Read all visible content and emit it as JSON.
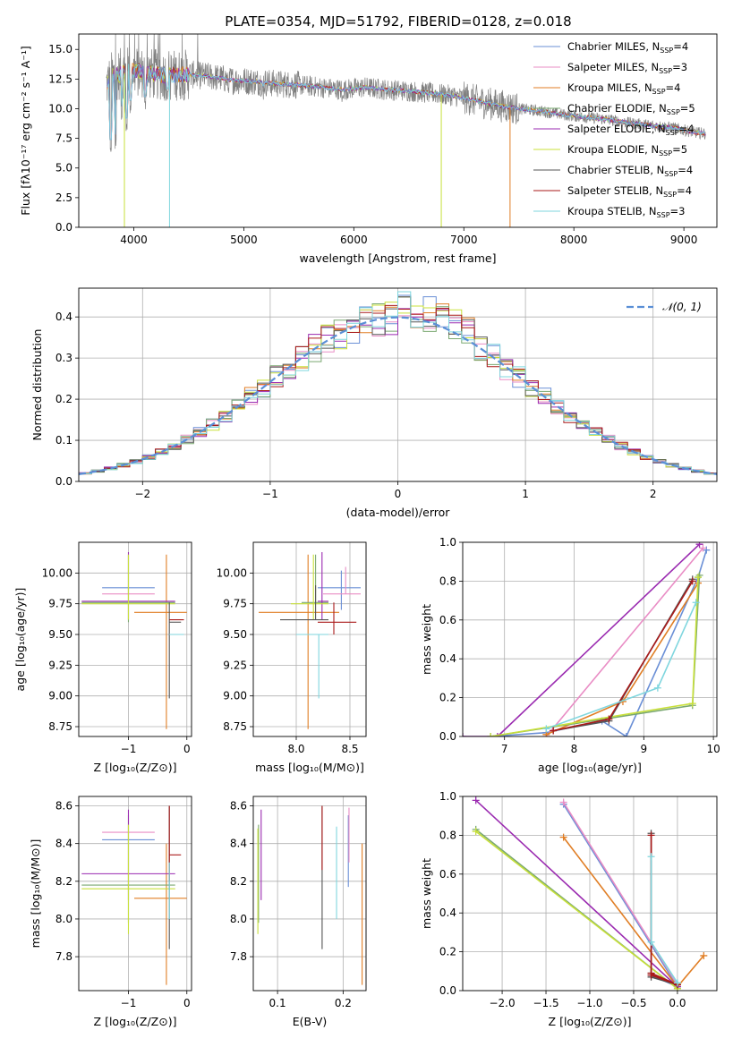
{
  "colors": {
    "c_miles": "#6a8fd6",
    "s_miles": "#e98dc5",
    "k_miles": "#e07e25",
    "c_elodie": "#7aa870",
    "s_elodie": "#9a2ab0",
    "k_elodie": "#c8e03a",
    "c_stelib": "#555555",
    "s_stelib": "#aa1a1a",
    "k_stelib": "#7fd6de",
    "gauss": "#5a8fd6",
    "spec": "#7f7f7f"
  },
  "figure_title": "PLATE=0354, MJD=51792, FIBERID=0128, z=0.018",
  "legend_spectrum": [
    {
      "key": "c_miles",
      "text": "Chabrier MILES, N",
      "n": "=4"
    },
    {
      "key": "s_miles",
      "text": "Salpeter MILES, N",
      "n": "=3"
    },
    {
      "key": "k_miles",
      "text": "Kroupa MILES, N",
      "n": "=4"
    },
    {
      "key": "c_elodie",
      "text": "Chabrier ELODIE, N",
      "n": "=5"
    },
    {
      "key": "s_elodie",
      "text": "Salpeter ELODIE, N",
      "n": "=4"
    },
    {
      "key": "k_elodie",
      "text": "Kroupa ELODIE, N",
      "n": "=5"
    },
    {
      "key": "c_stelib",
      "text": "Chabrier STELIB, N",
      "n": "=4"
    },
    {
      "key": "s_stelib",
      "text": "Salpeter STELIB, N",
      "n": "=4"
    },
    {
      "key": "k_stelib",
      "text": "Kroupa STELIB, N",
      "n": "=3"
    }
  ],
  "legend_sub": "SSP",
  "chart_data": [
    {
      "id": "spectrum",
      "type": "line",
      "title": "PLATE=0354, MJD=51792, FIBERID=0128, z=0.018",
      "xlabel": "wavelength [Angstrom, rest frame]",
      "ylabel": "Flux [fλ10⁻¹⁷ erg cm⁻² s⁻¹ A⁻¹]",
      "xlim": [
        3500,
        9300
      ],
      "ylim": [
        0,
        16.3
      ],
      "xticks": [
        4000,
        5000,
        6000,
        7000,
        8000,
        9000
      ],
      "yticks": [
        0.0,
        2.5,
        5.0,
        7.5,
        10.0,
        12.5,
        15.0
      ],
      "ytick_labels": [
        "0.0",
        "2.5",
        "5.0",
        "7.5",
        "10.0",
        "12.5",
        "15.0"
      ],
      "grid": false,
      "legend": "top-right",
      "continuum": {
        "x": [
          3750,
          3800,
          3900,
          4000,
          4100,
          4300,
          4500,
          4700,
          4900,
          5100,
          5300,
          5500,
          5700,
          5900,
          6100,
          6300,
          6500,
          6700,
          6900,
          7100,
          7300,
          7500,
          7700,
          7900,
          8100,
          8300,
          8500,
          8700,
          8900,
          9100,
          9200
        ],
        "y": [
          12.0,
          12.7,
          13.0,
          13.2,
          13.0,
          12.8,
          12.9,
          12.7,
          12.4,
          12.3,
          12.1,
          12.0,
          11.8,
          11.6,
          11.8,
          11.6,
          11.5,
          11.3,
          11.1,
          10.7,
          10.3,
          10.0,
          9.8,
          9.5,
          9.3,
          9.1,
          8.8,
          8.6,
          8.4,
          8.0,
          7.9
        ]
      },
      "absorption": [
        {
          "x": 3790,
          "y": 6.2
        },
        {
          "x": 3835,
          "y": 6.6
        },
        {
          "x": 3890,
          "y": 9.0
        },
        {
          "x": 3935,
          "y": 8.0
        },
        {
          "x": 3970,
          "y": 9.5
        },
        {
          "x": 4102,
          "y": 9.8
        },
        {
          "x": 4305,
          "y": 10.5
        },
        {
          "x": 4861,
          "y": 11.3
        },
        {
          "x": 5175,
          "y": 10.7
        },
        {
          "x": 5893,
          "y": 10.4
        },
        {
          "x": 6563,
          "y": 11.0
        }
      ],
      "model_drops": [
        {
          "x": 3915,
          "y": 0,
          "key": "k_elodie"
        },
        {
          "x": 4325,
          "y": 0,
          "key": "k_stelib"
        },
        {
          "x": 6795,
          "y": 0,
          "key": "k_elodie"
        },
        {
          "x": 7420,
          "y": 0,
          "key": "k_miles"
        }
      ]
    },
    {
      "id": "residuals",
      "type": "step",
      "xlabel": "(data-model)/error",
      "ylabel": "Normed distribution",
      "xlim": [
        -2.5,
        2.5
      ],
      "ylim": [
        0,
        0.47
      ],
      "xticks": [
        -2,
        -1,
        0,
        1,
        2
      ],
      "xtick_labels": [
        "−2",
        "−1",
        "0",
        "1",
        "2"
      ],
      "yticks": [
        0.0,
        0.1,
        0.2,
        0.3,
        0.4
      ],
      "ytick_labels": [
        "0.0",
        "0.1",
        "0.2",
        "0.3",
        "0.4"
      ],
      "grid": true,
      "legend": "top-right",
      "gauss_label": "𝒩(0, 1)",
      "bin_width": 0.1
    },
    {
      "id": "age_vs_Z",
      "type": "errorbar",
      "xlabel": "Z [log₁₀(Z/Z⊙)]",
      "ylabel": "age  [log₁₀(age/yr)]",
      "xlim": [
        -1.85,
        0.08
      ],
      "ylim": [
        8.67,
        10.25
      ],
      "xticks": [
        -1,
        0
      ],
      "xtick_labels": [
        "−1",
        "0"
      ],
      "yticks": [
        8.75,
        9.0,
        9.25,
        9.5,
        9.75,
        10.0
      ],
      "ytick_labels": [
        "8.75",
        "9.00",
        "9.25",
        "9.50",
        "9.75",
        "10.00"
      ],
      "grid": true,
      "points": [
        {
          "key": "c_miles",
          "x": -1.0,
          "xlo": -1.45,
          "xhi": -0.55,
          "y": 9.88,
          "ylo": 9.88,
          "yhi": 9.88
        },
        {
          "key": "s_miles",
          "x": -1.0,
          "xlo": -1.45,
          "xhi": -0.55,
          "y": 9.83,
          "ylo": 9.83,
          "yhi": 9.83
        },
        {
          "key": "k_miles",
          "x": -0.35,
          "xlo": -0.9,
          "xhi": 0.0,
          "y": 9.68,
          "ylo": 8.73,
          "yhi": 10.15
        },
        {
          "key": "c_elodie",
          "x": -1.0,
          "xlo": -1.8,
          "xhi": -0.2,
          "y": 9.76,
          "ylo": 9.6,
          "yhi": 10.15
        },
        {
          "key": "s_elodie",
          "x": -1.0,
          "xlo": -1.8,
          "xhi": -0.2,
          "y": 9.77,
          "ylo": 9.62,
          "yhi": 10.17
        },
        {
          "key": "k_elodie",
          "x": -1.0,
          "xlo": -1.8,
          "xhi": -0.2,
          "y": 9.75,
          "ylo": 9.62,
          "yhi": 10.15
        },
        {
          "key": "c_stelib",
          "x": -0.3,
          "xlo": -0.3,
          "xhi": -0.1,
          "y": 9.6,
          "ylo": 8.98,
          "yhi": 9.76
        },
        {
          "key": "s_stelib",
          "x": -0.3,
          "xlo": -0.3,
          "xhi": -0.05,
          "y": 9.62,
          "ylo": 9.62,
          "yhi": 9.62
        },
        {
          "key": "k_stelib",
          "x": -0.3,
          "xlo": -0.3,
          "xhi": -0.05,
          "y": 9.5,
          "ylo": 9.5,
          "yhi": 9.5
        }
      ]
    },
    {
      "id": "age_vs_mass",
      "type": "errorbar",
      "xlabel": "mass [log₁₀(M/M⊙)]",
      "ylabel": "",
      "xlim": [
        7.6,
        8.65
      ],
      "ylim": [
        8.67,
        10.25
      ],
      "xticks": [
        8.0,
        8.5
      ],
      "xtick_labels": [
        "8.0",
        "8.5"
      ],
      "yticks": [
        8.75,
        9.0,
        9.25,
        9.5,
        9.75,
        10.0
      ],
      "ytick_labels": [
        "8.75",
        "9.00",
        "9.25",
        "9.50",
        "9.75",
        "10.00"
      ],
      "grid": true,
      "points": [
        {
          "key": "c_miles",
          "x": 8.42,
          "xlo": 8.2,
          "xhi": 8.6,
          "y": 9.88,
          "ylo": 9.7,
          "yhi": 10.02
        },
        {
          "key": "s_miles",
          "x": 8.46,
          "xlo": 8.25,
          "xhi": 8.6,
          "y": 9.83,
          "ylo": 9.83,
          "yhi": 10.05
        },
        {
          "key": "k_miles",
          "x": 8.11,
          "xlo": 7.65,
          "xhi": 8.4,
          "y": 9.68,
          "ylo": 8.73,
          "yhi": 10.15
        },
        {
          "key": "c_elodie",
          "x": 8.18,
          "xlo": 8.05,
          "xhi": 8.3,
          "y": 9.76,
          "ylo": 9.76,
          "yhi": 10.15
        },
        {
          "key": "s_elodie",
          "x": 8.24,
          "xlo": 8.2,
          "xhi": 8.3,
          "y": 9.77,
          "ylo": 9.62,
          "yhi": 10.17
        },
        {
          "key": "k_elodie",
          "x": 8.16,
          "xlo": 7.95,
          "xhi": 8.3,
          "y": 9.75,
          "ylo": 9.62,
          "yhi": 10.15
        },
        {
          "key": "c_stelib",
          "x": 8.18,
          "xlo": 7.85,
          "xhi": 8.3,
          "y": 9.62,
          "ylo": 9.62,
          "yhi": 9.9
        },
        {
          "key": "s_stelib",
          "x": 8.35,
          "xlo": 8.2,
          "xhi": 8.56,
          "y": 9.6,
          "ylo": 9.5,
          "yhi": 9.76
        },
        {
          "key": "k_stelib",
          "x": 8.21,
          "xlo": 8.0,
          "xhi": 8.3,
          "y": 9.5,
          "ylo": 8.98,
          "yhi": 9.5
        }
      ]
    },
    {
      "id": "weight_vs_age",
      "type": "line",
      "xlabel": "age  [log₁₀(age/yr)]",
      "ylabel": "mass weight",
      "xlim": [
        6.4,
        10.05
      ],
      "ylim": [
        0,
        1.0
      ],
      "xticks": [
        7,
        8,
        9,
        10
      ],
      "xtick_labels": [
        "7",
        "8",
        "9",
        "10"
      ],
      "yticks": [
        0.0,
        0.2,
        0.4,
        0.6,
        0.8,
        1.0
      ],
      "ytick_labels": [
        "0.0",
        "0.2",
        "0.4",
        "0.6",
        "0.8",
        "1.0"
      ],
      "grid": true,
      "series": [
        {
          "key": "c_miles",
          "x": [
            6.8,
            7.6,
            8.4,
            8.75,
            9.78,
            9.9
          ],
          "y": [
            0.0,
            0.02,
            0.08,
            0.0,
            0.82,
            0.96
          ]
        },
        {
          "key": "s_miles",
          "x": [
            7.6,
            9.85
          ],
          "y": [
            0.0,
            0.97
          ]
        },
        {
          "key": "k_miles",
          "x": [
            7.6,
            8.7,
            9.78
          ],
          "y": [
            0.01,
            0.18,
            0.79
          ]
        },
        {
          "key": "c_elodie",
          "x": [
            6.8,
            9.7,
            9.8
          ],
          "y": [
            0.0,
            0.16,
            0.83
          ]
        },
        {
          "key": "s_elodie",
          "x": [
            6.4,
            6.9,
            9.8
          ],
          "y": [
            0.0,
            0.0,
            0.99
          ]
        },
        {
          "key": "k_elodie",
          "x": [
            6.8,
            9.7,
            9.78
          ],
          "y": [
            0.0,
            0.17,
            0.82
          ]
        },
        {
          "key": "c_stelib",
          "x": [
            7.7,
            8.5,
            9.7
          ],
          "y": [
            0.03,
            0.08,
            0.81
          ]
        },
        {
          "key": "s_stelib",
          "x": [
            7.7,
            8.5,
            9.7
          ],
          "y": [
            0.03,
            0.09,
            0.8
          ]
        },
        {
          "key": "k_stelib",
          "x": [
            7.6,
            9.2,
            9.75
          ],
          "y": [
            0.04,
            0.25,
            0.69
          ]
        }
      ]
    },
    {
      "id": "mass_vs_Z",
      "type": "errorbar",
      "xlabel": "Z [log₁₀(Z/Z⊙)]",
      "ylabel": "mass [log₁₀(M/M⊙)]",
      "xlim": [
        -1.85,
        0.08
      ],
      "ylim": [
        7.62,
        8.65
      ],
      "xticks": [
        -1,
        0
      ],
      "xtick_labels": [
        "−1",
        "0"
      ],
      "yticks": [
        7.8,
        8.0,
        8.2,
        8.4,
        8.6
      ],
      "ytick_labels": [
        "7.8",
        "8.0",
        "8.2",
        "8.4",
        "8.6"
      ],
      "grid": true,
      "points": [
        {
          "key": "c_miles",
          "x": -1.0,
          "xlo": -1.45,
          "xhi": -0.55,
          "y": 8.42,
          "ylo": 8.42,
          "yhi": 8.42
        },
        {
          "key": "s_miles",
          "x": -1.0,
          "xlo": -1.45,
          "xhi": -0.55,
          "y": 8.46,
          "ylo": 8.46,
          "yhi": 8.46
        },
        {
          "key": "k_miles",
          "x": -0.35,
          "xlo": -0.9,
          "xhi": 0.0,
          "y": 8.11,
          "ylo": 7.65,
          "yhi": 8.4
        },
        {
          "key": "c_elodie",
          "x": -1.0,
          "xlo": -1.8,
          "xhi": -0.2,
          "y": 8.18,
          "ylo": 7.98,
          "yhi": 8.55
        },
        {
          "key": "s_elodie",
          "x": -1.0,
          "xlo": -1.8,
          "xhi": -0.2,
          "y": 8.24,
          "ylo": 8.1,
          "yhi": 8.58
        },
        {
          "key": "k_elodie",
          "x": -1.0,
          "xlo": -1.8,
          "xhi": -0.2,
          "y": 8.16,
          "ylo": 7.92,
          "yhi": 8.5
        },
        {
          "key": "c_stelib",
          "x": -0.3,
          "xlo": -0.3,
          "xhi": -0.3,
          "y": 8.18,
          "ylo": 7.84,
          "yhi": 8.6
        },
        {
          "key": "s_stelib",
          "x": -0.3,
          "xlo": -0.3,
          "xhi": -0.1,
          "y": 8.34,
          "ylo": 8.2,
          "yhi": 8.6
        },
        {
          "key": "k_stelib",
          "x": -0.3,
          "xlo": -0.3,
          "xhi": -0.3,
          "y": 8.21,
          "ylo": 8.0,
          "yhi": 8.3
        }
      ]
    },
    {
      "id": "mass_vs_EBV",
      "type": "errorbar",
      "xlabel": "E(B-V)",
      "ylabel": "",
      "xlim": [
        0.063,
        0.235
      ],
      "ylim": [
        7.62,
        8.65
      ],
      "xticks": [
        0.1,
        0.2
      ],
      "xtick_labels": [
        "0.1",
        "0.2"
      ],
      "yticks": [
        7.8,
        8.0,
        8.2,
        8.4,
        8.6
      ],
      "ytick_labels": [
        "7.8",
        "8.0",
        "8.2",
        "8.4",
        "8.6"
      ],
      "grid": true,
      "points": [
        {
          "key": "c_miles",
          "x": 0.208,
          "xlo": 0.208,
          "xhi": 0.208,
          "y": 8.42,
          "ylo": 8.17,
          "yhi": 8.55
        },
        {
          "key": "s_miles",
          "x": 0.209,
          "xlo": 0.209,
          "xhi": 0.209,
          "y": 8.46,
          "ylo": 8.3,
          "yhi": 8.59
        },
        {
          "key": "k_miles",
          "x": 0.229,
          "xlo": 0.229,
          "xhi": 0.229,
          "y": 8.11,
          "ylo": 7.65,
          "yhi": 8.4
        },
        {
          "key": "c_elodie",
          "x": 0.071,
          "xlo": 0.071,
          "xhi": 0.071,
          "y": 8.18,
          "ylo": 7.98,
          "yhi": 8.5
        },
        {
          "key": "s_elodie",
          "x": 0.075,
          "xlo": 0.075,
          "xhi": 0.075,
          "y": 8.24,
          "ylo": 8.1,
          "yhi": 8.58
        },
        {
          "key": "k_elodie",
          "x": 0.07,
          "xlo": 0.07,
          "xhi": 0.07,
          "y": 8.16,
          "ylo": 7.92,
          "yhi": 8.48
        },
        {
          "key": "c_stelib",
          "x": 0.168,
          "xlo": 0.168,
          "xhi": 0.168,
          "y": 8.18,
          "ylo": 7.84,
          "yhi": 8.6
        },
        {
          "key": "s_stelib",
          "x": 0.168,
          "xlo": 0.168,
          "xhi": 0.168,
          "y": 8.34,
          "ylo": 8.26,
          "yhi": 8.6
        },
        {
          "key": "k_stelib",
          "x": 0.19,
          "xlo": 0.19,
          "xhi": 0.19,
          "y": 8.21,
          "ylo": 8.0,
          "yhi": 8.49
        }
      ]
    },
    {
      "id": "weight_vs_Z",
      "type": "line",
      "xlabel": "Z [log₁₀(Z/Z⊙)]",
      "ylabel": "mass weight",
      "xlim": [
        -2.45,
        0.45
      ],
      "ylim": [
        0,
        1.0
      ],
      "xticks": [
        -2.0,
        -1.5,
        -1.0,
        -0.5,
        0.0
      ],
      "xtick_labels": [
        "−2.0",
        "−1.5",
        "−1.0",
        "−0.5",
        "0.0"
      ],
      "yticks": [
        0.0,
        0.2,
        0.4,
        0.6,
        0.8,
        1.0
      ],
      "ytick_labels": [
        "0.0",
        "0.2",
        "0.4",
        "0.6",
        "0.8",
        "1.0"
      ],
      "grid": true,
      "series": [
        {
          "key": "c_miles",
          "x": [
            -1.3,
            0.0,
            -0.3
          ],
          "y": [
            0.96,
            0.02,
            0.08
          ]
        },
        {
          "key": "s_miles",
          "x": [
            -1.3,
            0.0
          ],
          "y": [
            0.97,
            0.03
          ]
        },
        {
          "key": "k_miles",
          "x": [
            -1.3,
            0.0,
            0.3
          ],
          "y": [
            0.79,
            0.02,
            0.18
          ]
        },
        {
          "key": "c_elodie",
          "x": [
            -2.3,
            0.0
          ],
          "y": [
            0.83,
            0.01
          ]
        },
        {
          "key": "s_elodie",
          "x": [
            -2.3,
            0.0
          ],
          "y": [
            0.98,
            0.02
          ]
        },
        {
          "key": "k_elodie",
          "x": [
            -2.3,
            0.0
          ],
          "y": [
            0.82,
            0.01
          ]
        },
        {
          "key": "c_stelib",
          "x": [
            -0.3,
            -0.3,
            0.0,
            -0.3
          ],
          "y": [
            0.81,
            0.09,
            0.03,
            0.07
          ]
        },
        {
          "key": "s_stelib",
          "x": [
            -0.3,
            -0.3,
            0.0,
            -0.3
          ],
          "y": [
            0.8,
            0.08,
            0.03,
            0.09
          ]
        },
        {
          "key": "k_stelib",
          "x": [
            -0.3,
            -0.3,
            0.0
          ],
          "y": [
            0.69,
            0.25,
            0.04
          ]
        }
      ]
    }
  ]
}
